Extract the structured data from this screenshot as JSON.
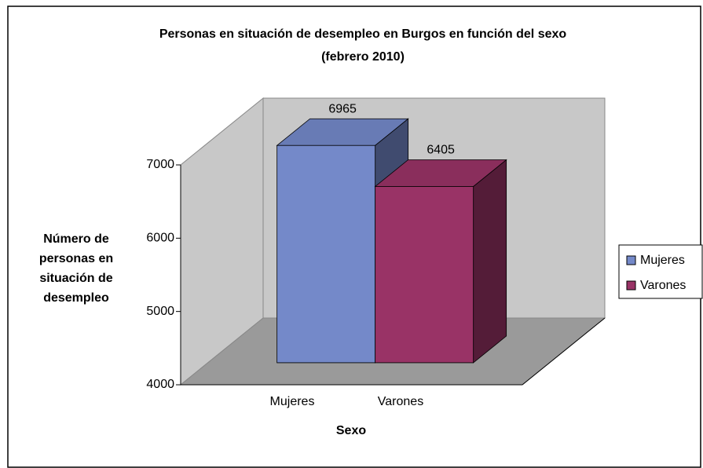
{
  "chart_data": {
    "type": "bar3d",
    "title": "Personas en situación de desempleo en Burgos en función del sexo",
    "subtitle": "(febrero 2010)",
    "x_label": "Sexo",
    "y_label": [
      "Número de",
      "personas en",
      "situación de",
      "desempleo"
    ],
    "categories": [
      "Mujeres",
      "Varones"
    ],
    "values": [
      6965,
      6405
    ],
    "colors": [
      "#7489c9",
      "#993366"
    ],
    "ylim": [
      4000,
      7000
    ],
    "yticks": [
      4000,
      5000,
      6000,
      7000
    ],
    "legend": "right"
  }
}
